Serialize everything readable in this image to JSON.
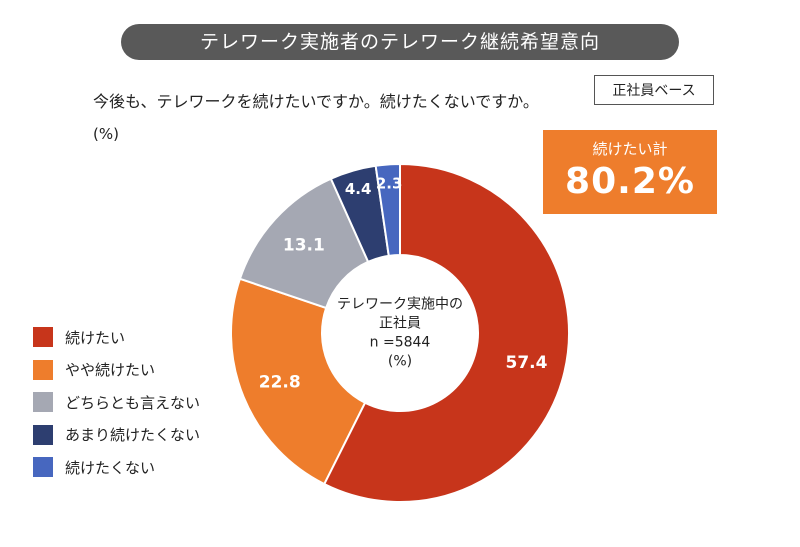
{
  "header": {
    "title": "テレワーク実施者のテレワーク継続希望意向",
    "question": "今後も、テレワークを続けたいですか。続けたくないですか。",
    "unit": "(%)",
    "base": "正社員ベース"
  },
  "summary": {
    "label": "続けたい計",
    "value": "80.2%"
  },
  "chart_data": {
    "type": "pie",
    "donut": true,
    "center_label": [
      "テレワーク実施中の",
      "正社員",
      "n =5844",
      "(%)"
    ],
    "categories": [
      "続けたい",
      "やや続けたい",
      "どちらとも言えない",
      "あまり続けたくない",
      "続けたくない"
    ],
    "values": [
      57.4,
      22.8,
      13.1,
      4.4,
      2.3
    ],
    "value_labels": [
      "57.4",
      "22.8",
      "13.1",
      "4.4",
      "2.3"
    ],
    "colors": [
      "#c7351b",
      "#ee7d2c",
      "#a5a8b3",
      "#2d3e70",
      "#4767bf"
    ],
    "start": "12 o'clock",
    "direction": "clockwise",
    "legend": "left"
  }
}
